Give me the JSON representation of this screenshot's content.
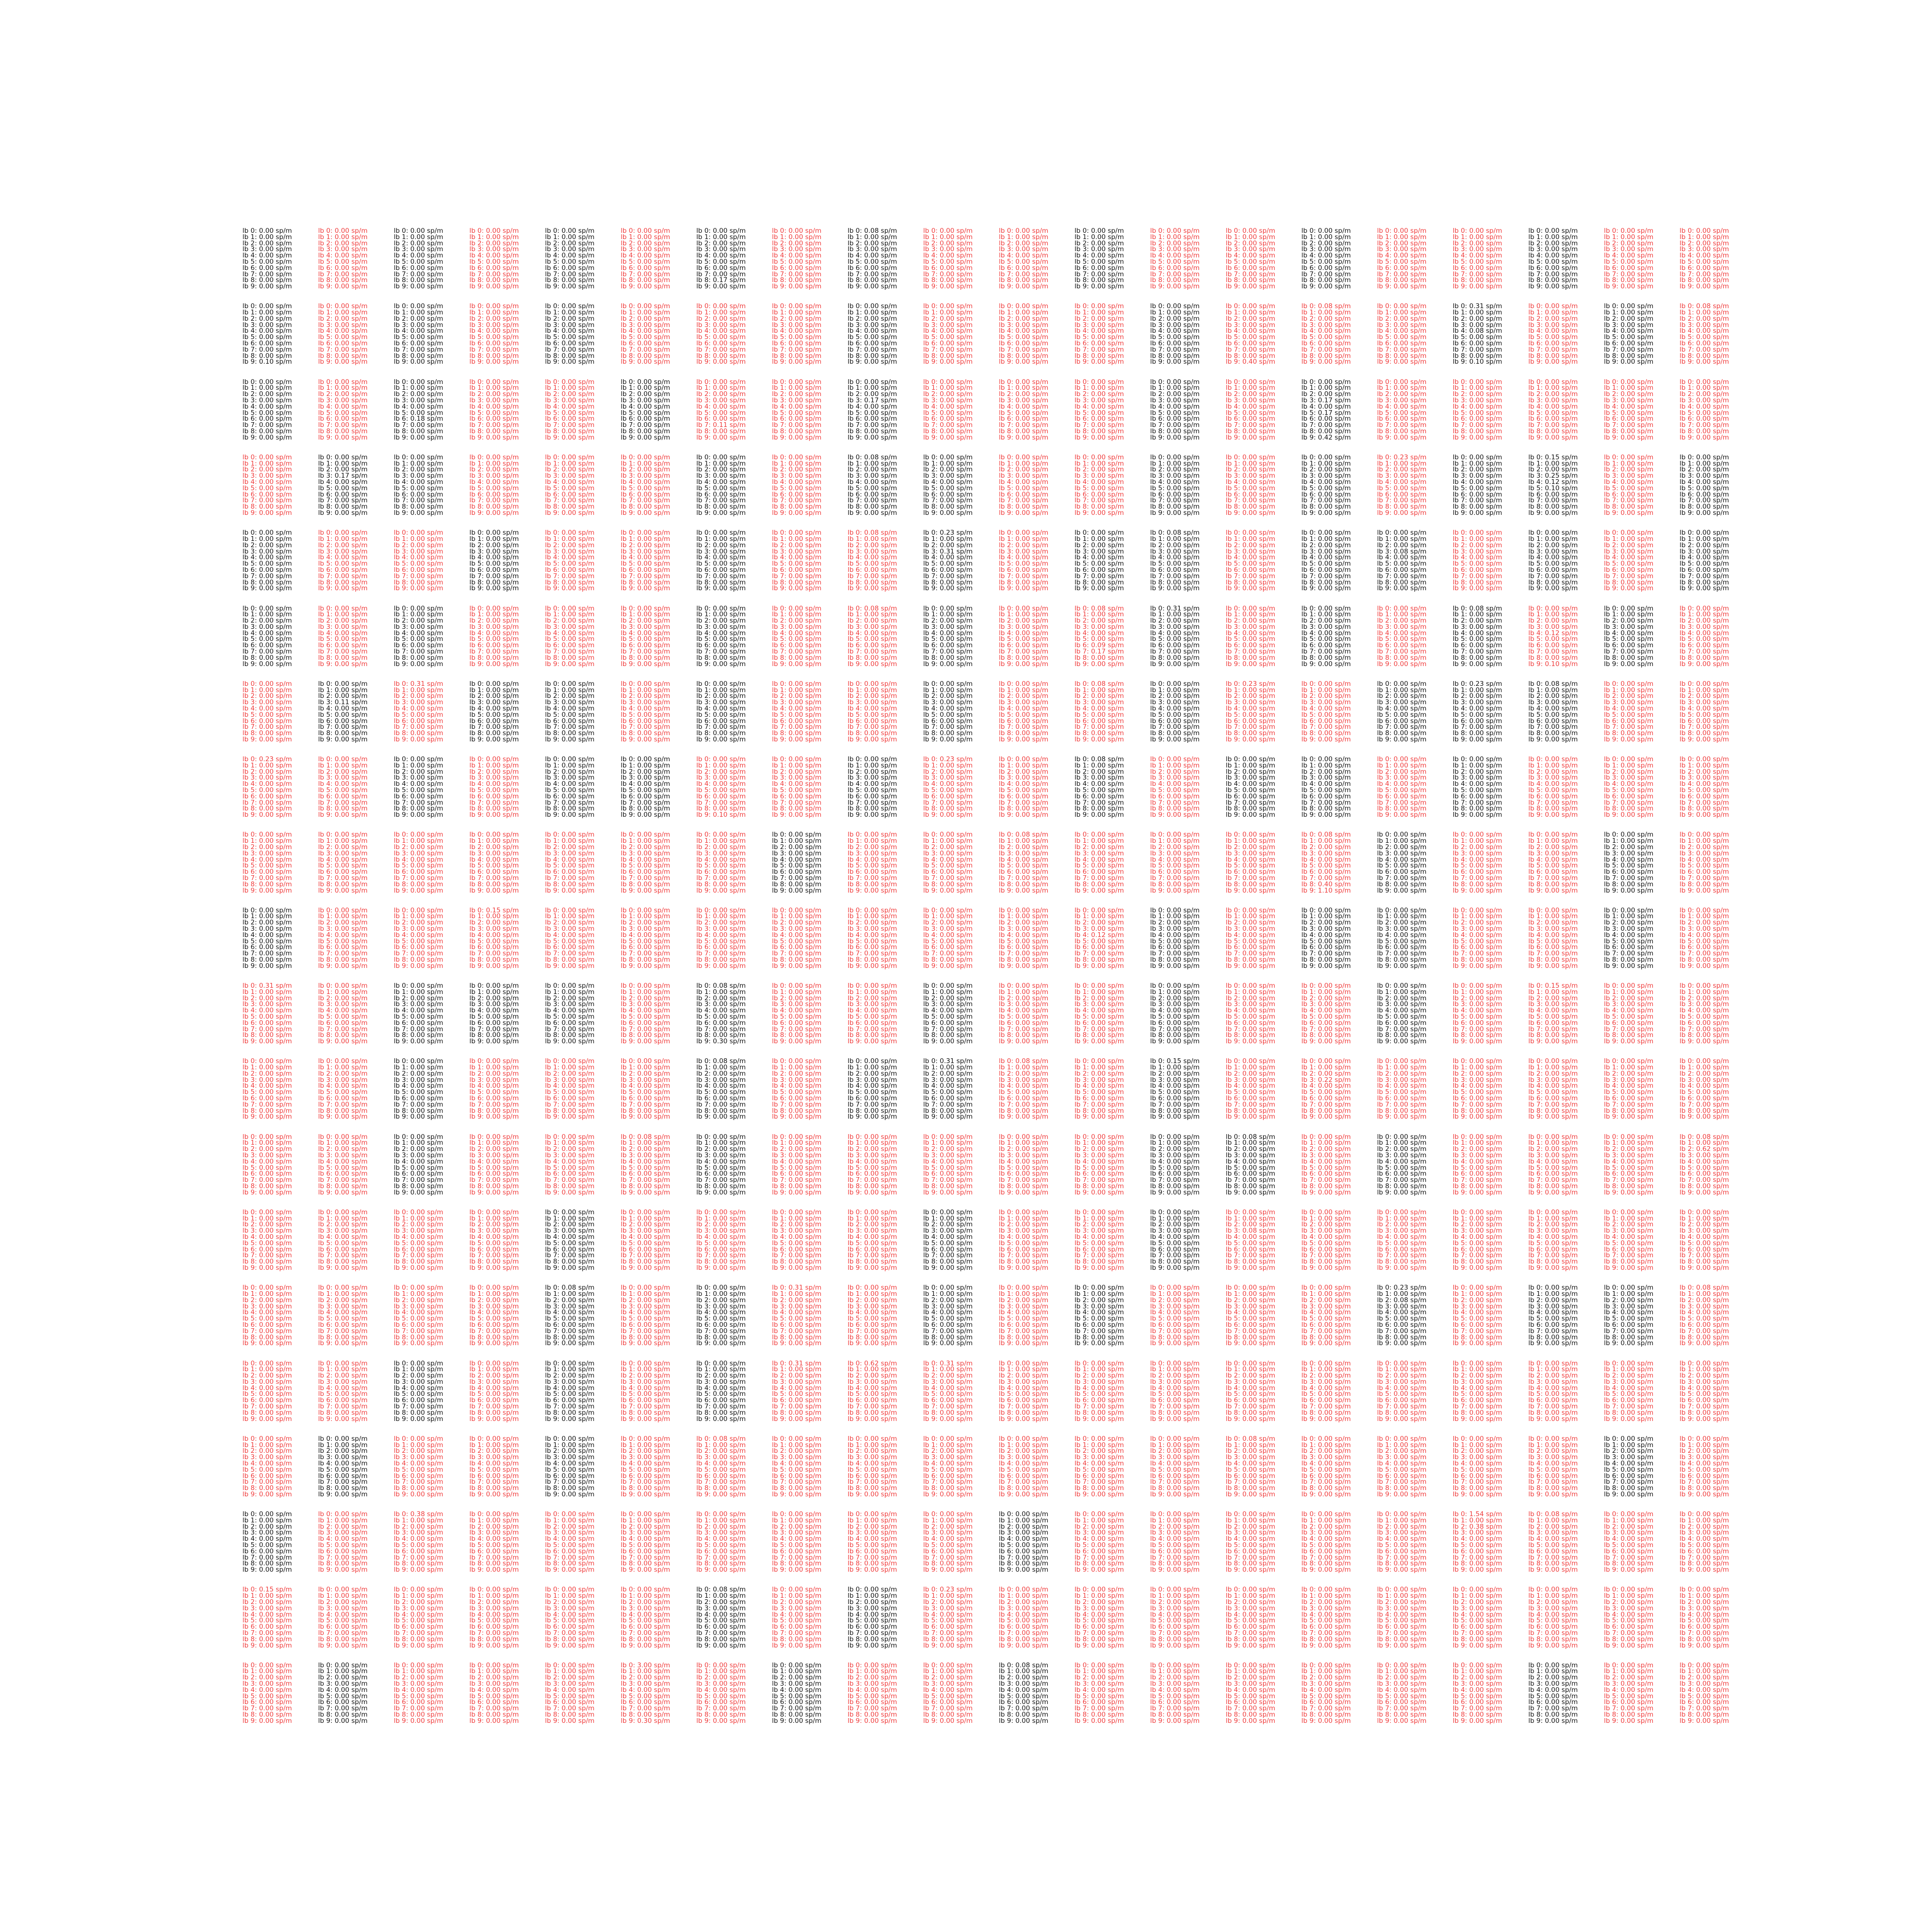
{
  "line_format": "lb {i}: {v} sp/m",
  "default_value": "0.00",
  "colors": {
    "normal": "#111111",
    "highlight": "#f03c3c"
  },
  "grid": {
    "rows": 20,
    "cols": 20,
    "lines_per_panel": 10
  },
  "red_panels": [
    "0,1",
    "0,3",
    "0,5",
    "0,7",
    "0,9",
    "0,10",
    "0,12",
    "0,13",
    "0,15",
    "0,16",
    "0,18",
    "0,19",
    "1,1",
    "1,3",
    "1,5",
    "1,6",
    "1,7",
    "1,9",
    "1,10",
    "1,11",
    "1,13",
    "1,14",
    "1,15",
    "1,17",
    "1,19",
    "2,1",
    "2,3",
    "2,4",
    "2,6",
    "2,7",
    "2,9",
    "2,10",
    "2,11",
    "2,13",
    "2,15",
    "2,16",
    "2,17",
    "2,18",
    "2,19",
    "3,0",
    "3,3",
    "3,4",
    "3,5",
    "3,7",
    "3,10",
    "3,11",
    "3,13",
    "3,15",
    "3,18",
    "4,1",
    "4,2",
    "4,4",
    "4,5",
    "4,7",
    "4,8",
    "4,10",
    "4,13",
    "4,16",
    "4,18",
    "5,1",
    "5,3",
    "5,4",
    "5,5",
    "5,7",
    "5,8",
    "5,10",
    "5,11",
    "5,13",
    "5,15",
    "5,17",
    "5,19",
    "6,0",
    "6,2",
    "6,5",
    "6,7",
    "6,8",
    "6,10",
    "6,11",
    "6,13",
    "6,14",
    "6,18",
    "6,19",
    "7,0",
    "7,1",
    "7,3",
    "7,6",
    "7,7",
    "7,9",
    "7,10",
    "7,12",
    "7,15",
    "7,17",
    "7,18",
    "7,19",
    "8,0",
    "8,1",
    "8,2",
    "8,3",
    "8,4",
    "8,5",
    "8,6",
    "8,8",
    "8,9",
    "8,10",
    "8,11",
    "8,12",
    "8,13",
    "8,14",
    "8,16",
    "8,17",
    "8,19",
    "9,1",
    "9,2",
    "9,3",
    "9,4",
    "9,5",
    "9,6",
    "9,7",
    "9,8",
    "9,9",
    "9,10",
    "9,11",
    "9,13",
    "9,16",
    "9,17",
    "9,19",
    "10,0",
    "10,1",
    "10,5",
    "10,7",
    "10,8",
    "10,10",
    "10,11",
    "10,13",
    "10,14",
    "10,16",
    "10,17",
    "10,18",
    "10,19",
    "11,0",
    "11,1",
    "11,3",
    "11,4",
    "11,5",
    "11,7",
    "11,10",
    "11,11",
    "11,13",
    "11,14",
    "11,15",
    "11,16",
    "11,17",
    "11,18",
    "11,19",
    "12,0",
    "12,1",
    "12,3",
    "12,4",
    "12,5",
    "12,7",
    "12,8",
    "12,9",
    "12,10",
    "12,11",
    "12,14",
    "12,16",
    "12,17",
    "12,18",
    "12,19",
    "13,0",
    "13,1",
    "13,2",
    "13,3",
    "13,5",
    "13,6",
    "13,7",
    "13,8",
    "13,10",
    "13,11",
    "13,13",
    "13,14",
    "13,15",
    "13,16",
    "13,17",
    "13,18",
    "13,19",
    "14,0",
    "14,1",
    "14,2",
    "14,3",
    "14,5",
    "14,7",
    "14,8",
    "14,10",
    "14,12",
    "14,13",
    "14,14",
    "14,16",
    "14,19",
    "15,0",
    "15,1",
    "15,3",
    "15,5",
    "15,7",
    "15,8",
    "15,9",
    "15,10",
    "15,11",
    "15,12",
    "15,13",
    "15,14",
    "15,15",
    "15,16",
    "15,17",
    "15,18",
    "15,19",
    "16,0",
    "16,2",
    "16,3",
    "16,5",
    "16,6",
    "16,7",
    "16,8",
    "16,9",
    "16,10",
    "16,11",
    "16,12",
    "16,13",
    "16,14",
    "16,15",
    "16,16",
    "16,17",
    "16,19",
    "17,1",
    "17,2",
    "17,3",
    "17,4",
    "17,5",
    "17,6",
    "17,7",
    "17,8",
    "17,9",
    "17,11",
    "17,12",
    "17,13",
    "17,14",
    "17,15",
    "17,16",
    "17,17",
    "17,18",
    "17,19",
    "18,0",
    "18,1",
    "18,2",
    "18,3",
    "18,4",
    "18,5",
    "18,7",
    "18,9",
    "18,10",
    "18,11",
    "18,12",
    "18,13",
    "18,14",
    "18,15",
    "18,16",
    "18,17",
    "18,18",
    "18,19",
    "19,0",
    "19,2",
    "19,3",
    "19,4",
    "19,5",
    "19,6",
    "19,8",
    "19,9",
    "19,11",
    "19,12",
    "19,13",
    "19,14",
    "19,15",
    "19,16",
    "19,18",
    "19,19"
  ],
  "nonzero_values": {
    "0,8,0": "0.08",
    "0,6,8": "0.17",
    "1,19,0": "0.08",
    "1,16,0": "0.31",
    "1,16,4": "0.08",
    "1,16,9": "0.10",
    "1,14,0": "0.08",
    "1,0,9": "0.10",
    "1,13,9": "0.40",
    "2,2,6": "0.18",
    "2,6,7": "0.11",
    "2,14,3": "0.17",
    "2,14,5": "0.17",
    "2,14,9": "0.42",
    "2,8,3": "0.17",
    "3,1,3": "0.17",
    "3,15,0": "0.23",
    "3,17,0": "0.15",
    "3,17,3": "0.25",
    "3,17,4": "0.12",
    "3,17,5": "0.10",
    "3,8,0": "0.08",
    "4,9,0": "0.23",
    "4,9,3": "0.31",
    "4,8,0": "0.08",
    "4,12,0": "0.08",
    "4,15,3": "0.08",
    "5,8,0": "0.08",
    "5,12,0": "0.31",
    "5,11,0": "0.08",
    "5,11,6": "0.09",
    "5,11,7": "0.17",
    "5,17,4": "0.12",
    "5,17,9": "0.10",
    "5,16,0": "0.08",
    "6,2,0": "0.31",
    "6,1,3": "0.11",
    "6,16,0": "0.23",
    "6,11,0": "0.08",
    "6,13,0": "0.23",
    "6,17,0": "0.08",
    "7,0,0": "0.23",
    "7,9,0": "0.23",
    "7,11,0": "0.08",
    "7,6,9": "0.10",
    "8,10,0": "0.08",
    "8,14,0": "0.08",
    "8,14,8": "0.40",
    "8,14,9": "1.10",
    "9,3,0": "0.15",
    "9,11,4": "0.12",
    "10,0,0": "0.31",
    "10,6,0": "0.08",
    "10,6,9": "0.30",
    "10,17,0": "0.15",
    "11,6,0": "0.08",
    "11,9,0": "0.31",
    "11,10,0": "0.08",
    "11,12,0": "0.15",
    "11,14,3": "0.22",
    "12,5,0": "0.08",
    "12,13,0": "0.08",
    "12,19,0": "0.08",
    "12,19,2": "0.62",
    "13,13,3": "0.08",
    "14,4,0": "0.08",
    "14,7,0": "0.31",
    "14,15,0": "0.23",
    "14,15,2": "0.08",
    "14,19,0": "0.08",
    "15,7,0": "0.31",
    "15,8,0": "0.62",
    "15,9,0": "0.31",
    "16,6,0": "0.08",
    "16,13,0": "0.08",
    "17,2,0": "0.38",
    "17,16,0": "1.54",
    "17,16,2": "0.38",
    "17,17,0": "0.08",
    "18,0,0": "0.15",
    "18,6,0": "0.08",
    "18,9,0": "0.23",
    "19,5,0": "3.00",
    "19,5,9": "0.30",
    "19,10,0": "0.08"
  }
}
